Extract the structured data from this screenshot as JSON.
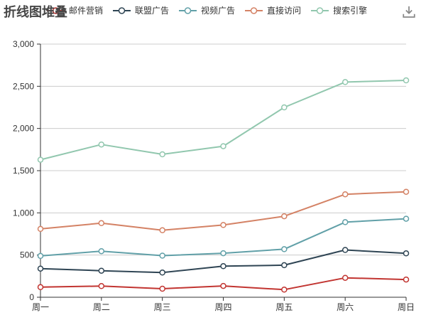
{
  "title": {
    "text": "折线图堆叠"
  },
  "toolbox": {
    "icon": "download-icon",
    "action_label": "save-as-image"
  },
  "legend": {
    "position": "top",
    "items": [
      "邮件营销",
      "联盟广告",
      "视频广告",
      "直接访问",
      "搜索引擎"
    ]
  },
  "chart_data": {
    "type": "line",
    "stacked": true,
    "title": "折线图堆叠",
    "x": [
      "周一",
      "周二",
      "周三",
      "周四",
      "周五",
      "周六",
      "周日"
    ],
    "series": [
      {
        "name": "邮件营销",
        "color": "#c23531",
        "values": [
          120,
          132,
          101,
          134,
          90,
          230,
          210
        ],
        "plotted": [
          120,
          132,
          101,
          134,
          90,
          230,
          210
        ]
      },
      {
        "name": "联盟广告",
        "color": "#2f4554",
        "values": [
          220,
          182,
          191,
          234,
          290,
          330,
          310
        ],
        "plotted": [
          340,
          314,
          292,
          368,
          380,
          560,
          520
        ]
      },
      {
        "name": "视频广告",
        "color": "#61a0a8",
        "values": [
          150,
          232,
          201,
          154,
          190,
          330,
          410
        ],
        "plotted": [
          490,
          546,
          493,
          522,
          570,
          890,
          930
        ]
      },
      {
        "name": "直接访问",
        "color": "#d48265",
        "values": [
          320,
          332,
          301,
          334,
          390,
          330,
          320
        ],
        "plotted": [
          810,
          878,
          794,
          856,
          960,
          1220,
          1250
        ]
      },
      {
        "name": "搜索引擎",
        "color": "#91c7ae",
        "values": [
          820,
          932,
          901,
          934,
          1290,
          1330,
          1320
        ],
        "plotted": [
          1630,
          1810,
          1694,
          1790,
          2250,
          2550,
          2570
        ]
      }
    ],
    "xlabel": "",
    "ylabel": "",
    "ylim": [
      0,
      3000
    ],
    "y_tick_step": 500,
    "y_tick_labels": [
      "0",
      "500",
      "1,000",
      "1,500",
      "2,000",
      "2,500",
      "3,000"
    ],
    "grid": true,
    "legend_position": "top",
    "marker_style": "hollow-circle",
    "colors": {
      "axis": "#333333",
      "gridline": "#cccccc",
      "label": "#333333",
      "title": "#464646",
      "toolbox_icon": "#888888",
      "background": "#ffffff"
    }
  }
}
